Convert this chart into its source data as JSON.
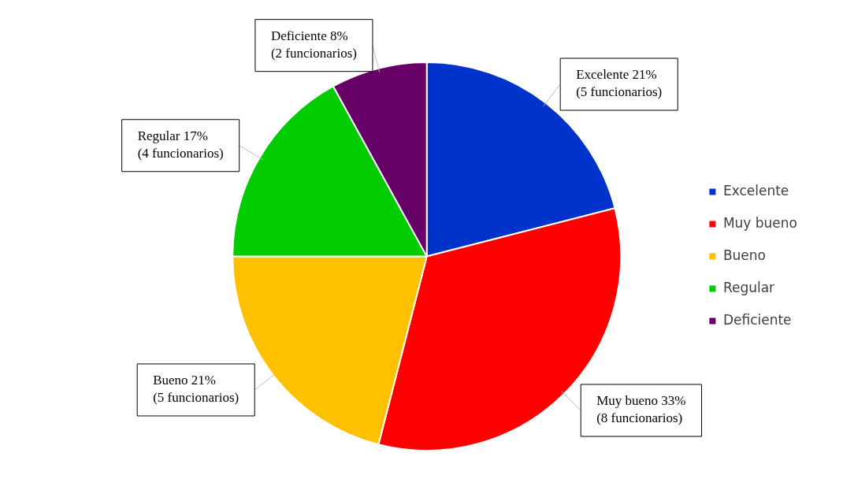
{
  "chart_data": {
    "type": "pie",
    "categories": [
      "Excelente",
      "Muy bueno",
      "Bueno",
      "Regular",
      "Deficiente"
    ],
    "values": [
      21,
      33,
      21,
      17,
      8
    ],
    "colors": [
      "#0033cc",
      "#ff0000",
      "#ffc000",
      "#00cc00",
      "#660066"
    ],
    "value_labels": [
      "Excelente 21%\n(5 funcionarios)",
      "Muy bueno 33%\n(8 funcionarios)",
      "Bueno 21%\n(5 funcionarios)",
      "Regular 17%\n(4 funcionarios)",
      "Deficiente 8%\n(2 funcionarios)"
    ],
    "legend": "right"
  }
}
